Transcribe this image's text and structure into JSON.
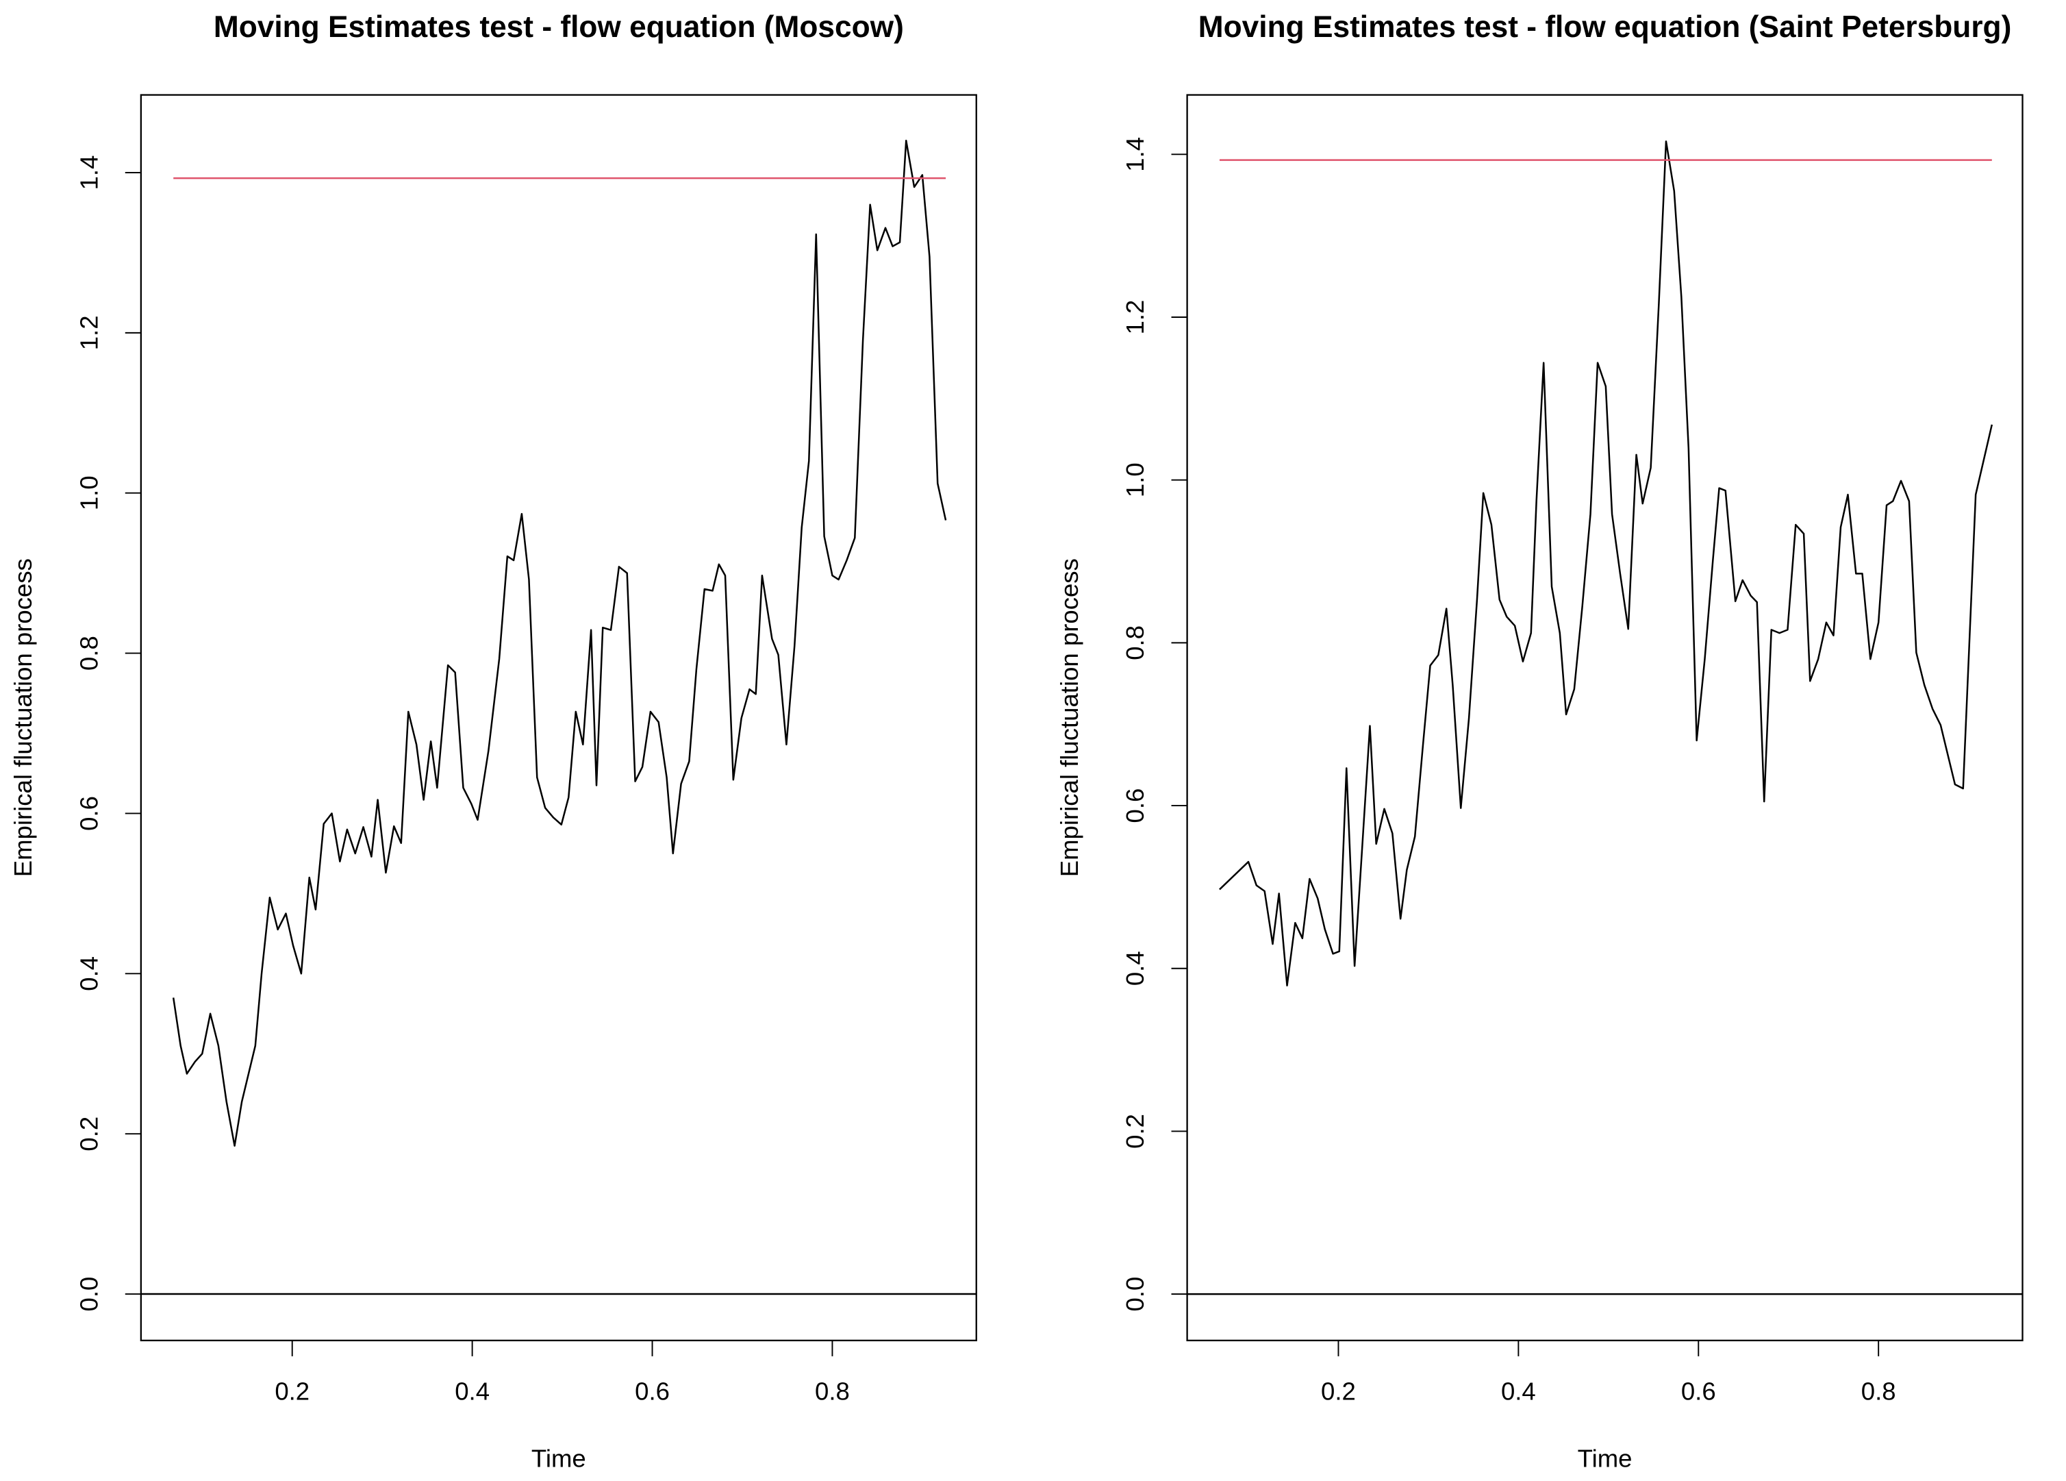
{
  "chart_data": [
    {
      "type": "line",
      "title": "Moving Estimates test - flow equation (Moscow)",
      "x_label": "Time",
      "y_label": "Empirical fluctuation process",
      "xlim": [
        0.032,
        0.96
      ],
      "ylim": [
        -0.058,
        1.497
      ],
      "xticks": [
        0.2,
        0.4,
        0.6,
        0.8
      ],
      "yticks": [
        {
          "value": 0,
          "label": "0.0"
        },
        0.2,
        0.4,
        0.6,
        0.8,
        {
          "value": 1,
          "label": "1.0"
        },
        1.2,
        1.4
      ],
      "hline": 0,
      "series": [
        {
          "color": "#000000",
          "x": [
            0.068,
            0.076,
            0.083,
            0.092,
            0.1,
            0.109,
            0.118,
            0.127,
            0.136,
            0.144,
            0.159,
            0.166,
            0.175,
            0.184,
            0.193,
            0.201,
            0.21,
            0.219,
            0.226,
            0.235,
            0.244,
            0.253,
            0.261,
            0.27,
            0.279,
            0.288,
            0.295,
            0.304,
            0.313,
            0.321,
            0.329,
            0.338,
            0.346,
            0.354,
            0.361,
            0.373,
            0.381,
            0.39,
            0.399,
            0.406,
            0.418,
            0.43,
            0.439,
            0.446,
            0.455,
            0.463,
            0.472,
            0.481,
            0.49,
            0.499,
            0.507,
            0.515,
            0.523,
            0.532,
            0.538,
            0.545,
            0.554,
            0.563,
            0.572,
            0.581,
            0.589,
            0.598,
            0.607,
            0.616,
            0.623,
            0.632,
            0.641,
            0.649,
            0.658,
            0.667,
            0.674,
            0.681,
            0.69,
            0.699,
            0.708,
            0.715,
            0.722,
            0.733,
            0.74,
            0.749,
            0.758,
            0.766,
            0.774,
            0.782,
            0.791,
            0.8,
            0.807,
            0.816,
            0.825,
            0.834,
            0.842,
            0.85,
            0.859,
            0.867,
            0.875,
            0.882,
            0.891,
            0.9,
            0.908,
            0.917,
            0.926
          ],
          "values": [
            0.37,
            0.31,
            0.275,
            0.29,
            0.3,
            0.35,
            0.31,
            0.24,
            0.185,
            0.24,
            0.31,
            0.4,
            0.495,
            0.455,
            0.475,
            0.435,
            0.4,
            0.52,
            0.48,
            0.587,
            0.6,
            0.54,
            0.58,
            0.55,
            0.583,
            0.546,
            0.617,
            0.526,
            0.584,
            0.563,
            0.727,
            0.686,
            0.617,
            0.69,
            0.632,
            0.785,
            0.776,
            0.632,
            0.612,
            0.592,
            0.678,
            0.793,
            0.921,
            0.916,
            0.974,
            0.892,
            0.645,
            0.607,
            0.595,
            0.586,
            0.62,
            0.727,
            0.686,
            0.829,
            0.635,
            0.832,
            0.829,
            0.908,
            0.9,
            0.64,
            0.658,
            0.727,
            0.714,
            0.645,
            0.55,
            0.637,
            0.665,
            0.78,
            0.88,
            0.878,
            0.911,
            0.897,
            0.642,
            0.719,
            0.755,
            0.749,
            0.897,
            0.818,
            0.798,
            0.686,
            0.809,
            0.957,
            1.04,
            1.323,
            0.946,
            0.897,
            0.892,
            0.916,
            0.944,
            1.191,
            1.36,
            1.303,
            1.331,
            1.308,
            1.313,
            1.44,
            1.382,
            1.397,
            1.295,
            1.012,
            0.966
          ]
        },
        {
          "color": "#df536b",
          "x": [
            0.068,
            0.926
          ],
          "values": [
            1.393,
            1.393
          ]
        }
      ]
    },
    {
      "type": "line",
      "title": "Moving Estimates test - flow equation (Saint Petersburg)",
      "x_label": "Time",
      "y_label": "Empirical fluctuation process",
      "xlim": [
        0.032,
        0.96
      ],
      "ylim": [
        -0.057,
        1.473
      ],
      "xticks": [
        0.2,
        0.4,
        0.6,
        0.8
      ],
      "yticks": [
        {
          "value": 0,
          "label": "0.0"
        },
        0.2,
        0.4,
        0.6,
        0.8,
        {
          "value": 1,
          "label": "1.0"
        },
        1.2,
        1.4
      ],
      "hline": 0,
      "series": [
        {
          "color": "#000000",
          "x": [
            0.068,
            0.1,
            0.109,
            0.118,
            0.127,
            0.134,
            0.143,
            0.152,
            0.16,
            0.168,
            0.177,
            0.185,
            0.194,
            0.201,
            0.209,
            0.218,
            0.226,
            0.235,
            0.242,
            0.251,
            0.26,
            0.269,
            0.276,
            0.285,
            0.294,
            0.302,
            0.311,
            0.32,
            0.327,
            0.336,
            0.345,
            0.354,
            0.361,
            0.37,
            0.379,
            0.387,
            0.396,
            0.405,
            0.414,
            0.42,
            0.428,
            0.437,
            0.446,
            0.453,
            0.462,
            0.471,
            0.48,
            0.488,
            0.497,
            0.504,
            0.513,
            0.522,
            0.531,
            0.538,
            0.547,
            0.556,
            0.564,
            0.573,
            0.581,
            0.589,
            0.598,
            0.607,
            0.616,
            0.623,
            0.63,
            0.641,
            0.649,
            0.658,
            0.665,
            0.673,
            0.681,
            0.69,
            0.699,
            0.708,
            0.717,
            0.724,
            0.733,
            0.742,
            0.75,
            0.758,
            0.766,
            0.775,
            0.782,
            0.791,
            0.8,
            0.809,
            0.816,
            0.825,
            0.834,
            0.842,
            0.851,
            0.86,
            0.869,
            0.876,
            0.885,
            0.894,
            0.908,
            0.926
          ],
          "values": [
            0.497,
            0.531,
            0.502,
            0.495,
            0.43,
            0.492,
            0.379,
            0.456,
            0.437,
            0.51,
            0.486,
            0.448,
            0.418,
            0.421,
            0.646,
            0.403,
            0.541,
            0.698,
            0.553,
            0.596,
            0.566,
            0.461,
            0.521,
            0.562,
            0.675,
            0.772,
            0.785,
            0.842,
            0.748,
            0.597,
            0.707,
            0.853,
            0.984,
            0.945,
            0.853,
            0.832,
            0.821,
            0.777,
            0.812,
            0.974,
            1.144,
            0.869,
            0.812,
            0.712,
            0.743,
            0.845,
            0.958,
            1.144,
            1.115,
            0.958,
            0.885,
            0.817,
            1.031,
            0.971,
            1.015,
            1.217,
            1.416,
            1.355,
            1.225,
            1.039,
            0.68,
            0.78,
            0.901,
            0.99,
            0.987,
            0.851,
            0.877,
            0.858,
            0.85,
            0.605,
            0.816,
            0.812,
            0.816,
            0.945,
            0.934,
            0.753,
            0.78,
            0.825,
            0.809,
            0.942,
            0.982,
            0.885,
            0.885,
            0.78,
            0.825,
            0.969,
            0.974,
            0.999,
            0.974,
            0.788,
            0.748,
            0.719,
            0.699,
            0.667,
            0.626,
            0.621,
            0.982,
            1.068
          ]
        },
        {
          "color": "#df536b",
          "x": [
            0.068,
            0.926
          ],
          "values": [
            1.393,
            1.393
          ]
        }
      ]
    }
  ]
}
